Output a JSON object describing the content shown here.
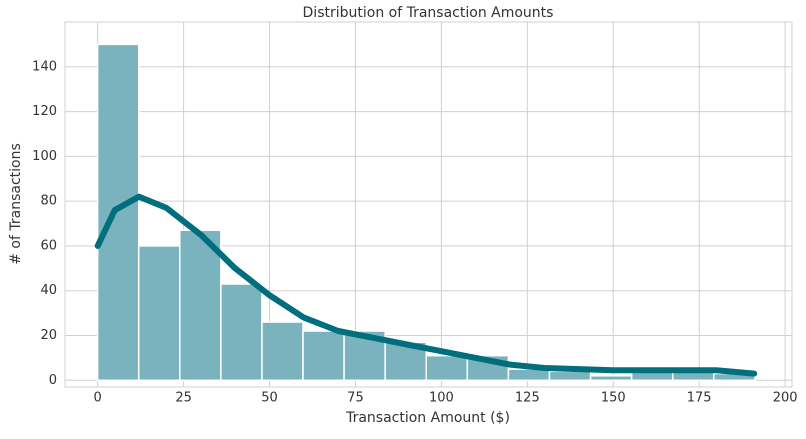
{
  "chart_data": {
    "type": "histogram",
    "title": "Distribution of Transaction Amounts",
    "x_label": "Transaction Amount ($)",
    "y_label": "# of Transactions",
    "bins": [
      0,
      11.95,
      23.9,
      35.85,
      47.8,
      59.75,
      71.7,
      83.65,
      95.6,
      107.55,
      119.5,
      131.45,
      143.4,
      155.35,
      167.3,
      179.25,
      191.2
    ],
    "counts": [
      150,
      60,
      67,
      43,
      26,
      22,
      22,
      17,
      11,
      11,
      5,
      4,
      2,
      4,
      4,
      3
    ],
    "color": "#7ab3bd",
    "kde": {
      "color": "#006e7c",
      "x": [
        0,
        5,
        12,
        20,
        30,
        40,
        50,
        60,
        70,
        80,
        90,
        100,
        110,
        120,
        130,
        140,
        150,
        160,
        170,
        180,
        191
      ],
      "y": [
        60,
        76,
        82,
        77,
        65,
        50,
        38,
        28,
        22,
        19,
        16,
        13,
        10,
        7,
        5.5,
        5,
        4.5,
        4.5,
        4.5,
        4.5,
        3
      ]
    },
    "xlim": [
      -9.5,
      202
    ],
    "ylim": [
      -3,
      160
    ],
    "xticks": [
      0,
      25,
      50,
      75,
      100,
      125,
      150,
      175,
      200
    ],
    "yticks": [
      0,
      20,
      40,
      60,
      80,
      100,
      120,
      140
    ],
    "grid": true
  }
}
